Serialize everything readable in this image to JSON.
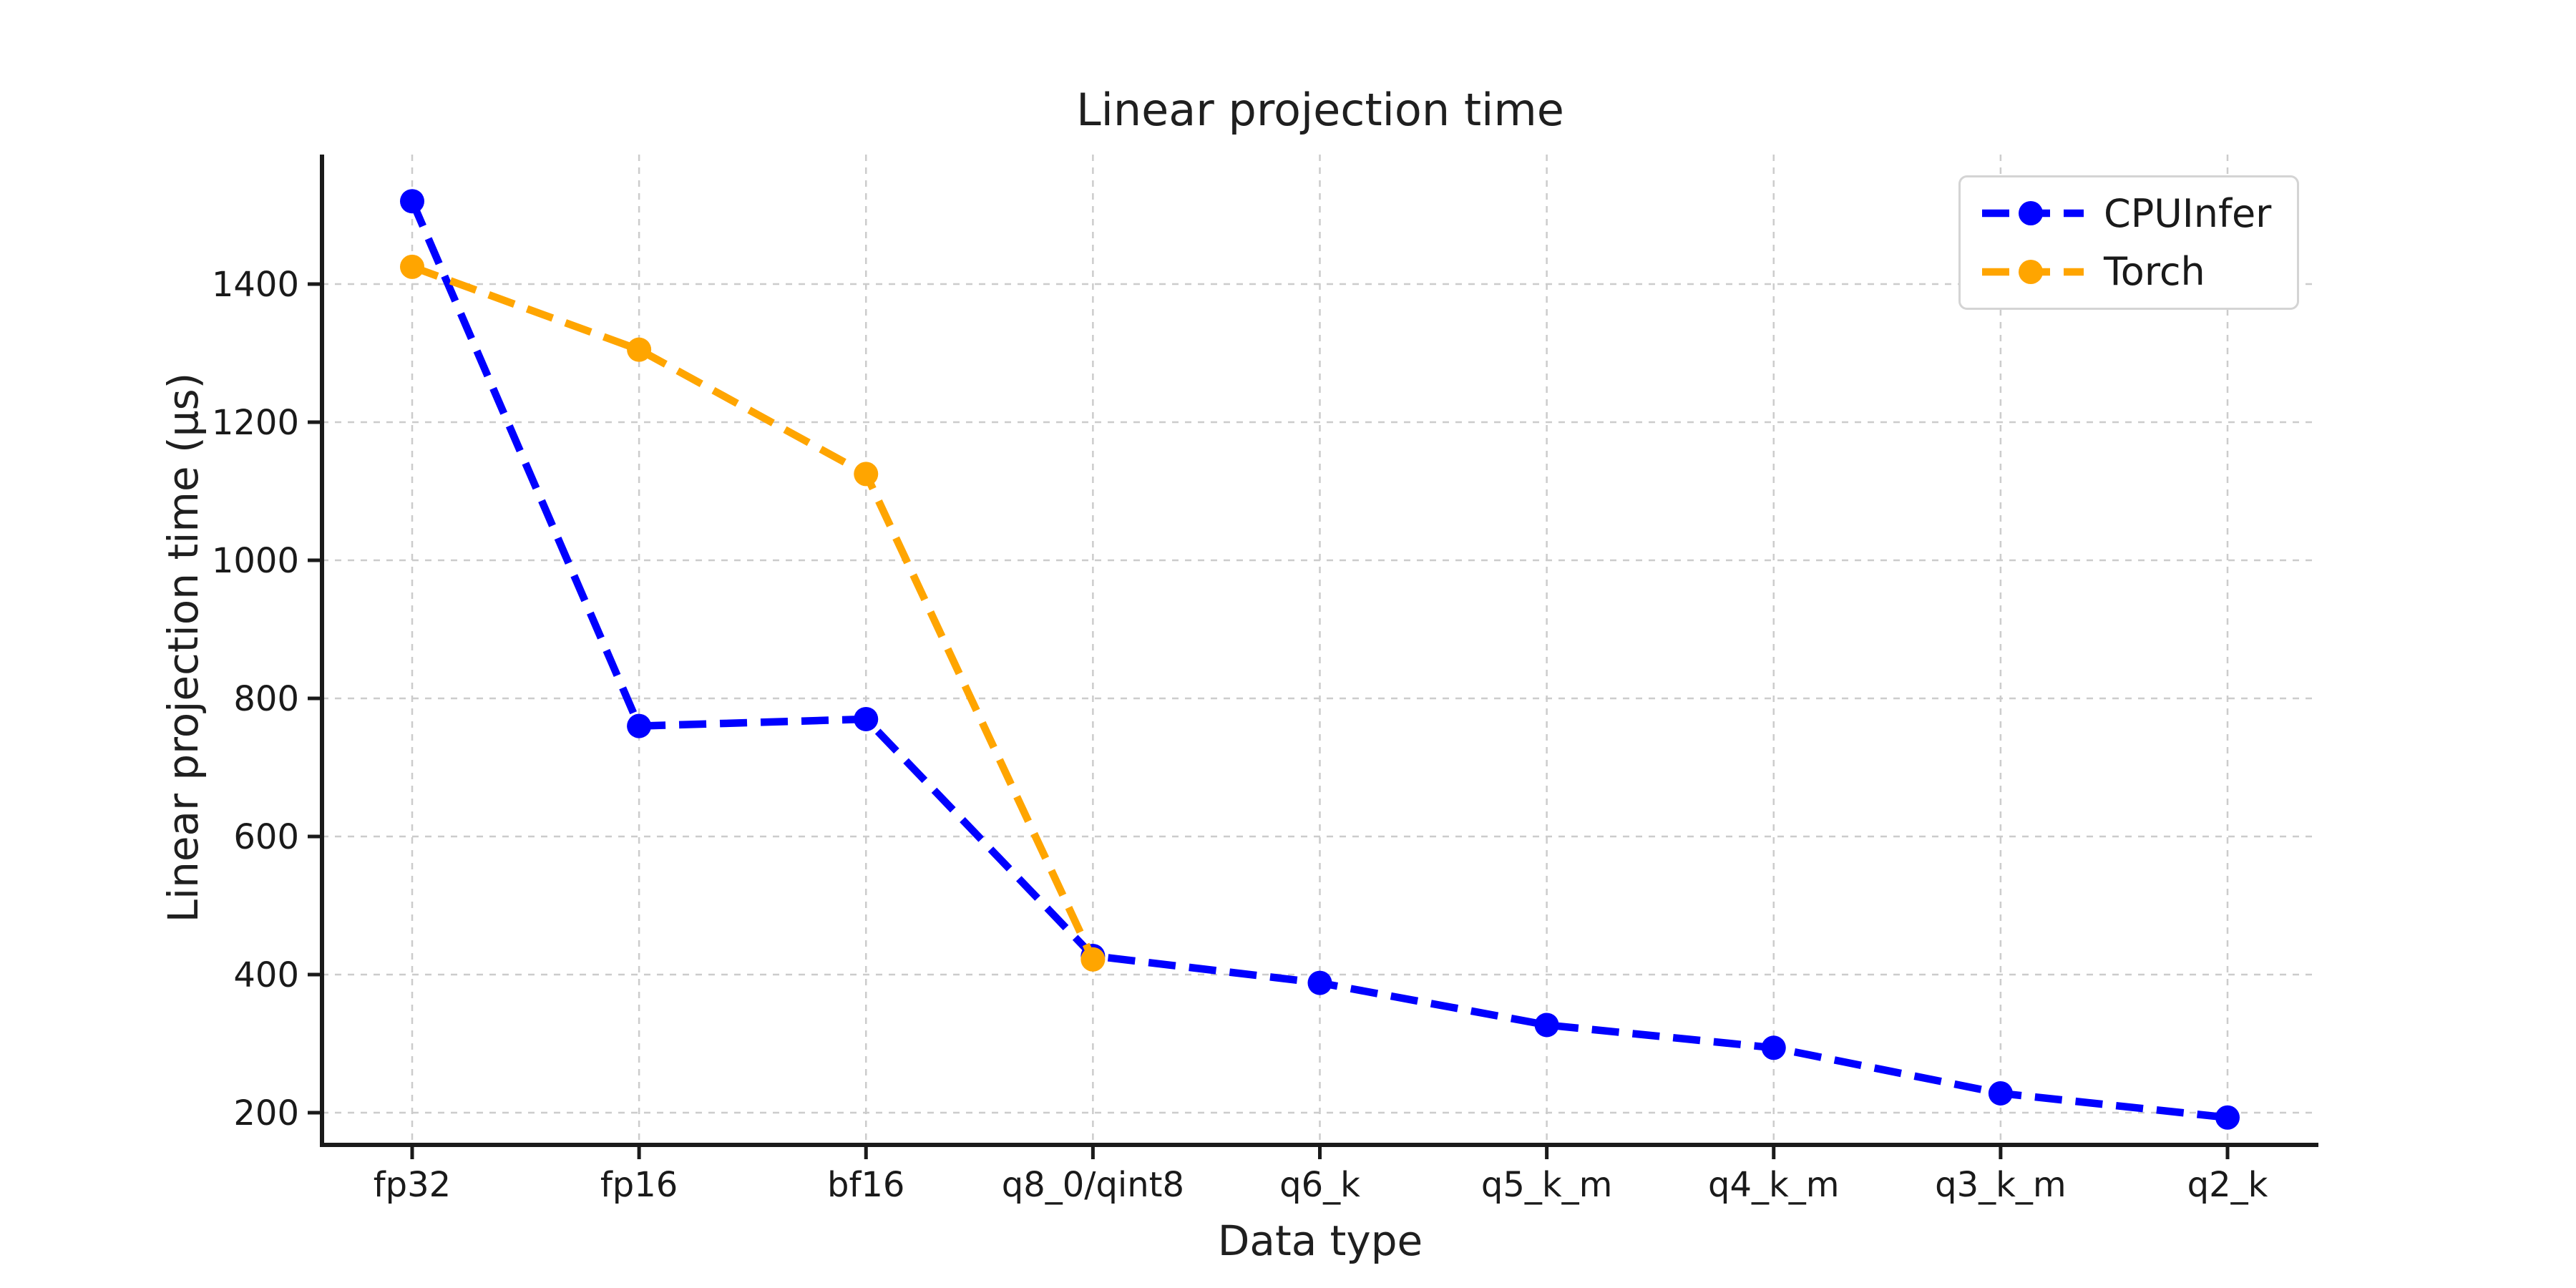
{
  "chart_data": {
    "type": "line",
    "title": "Linear projection time",
    "xlabel": "Data type",
    "ylabel": "Linear projection time (μs)",
    "categories": [
      "fp32",
      "fp16",
      "bf16",
      "q8_0/qint8",
      "q6_k",
      "q5_k_m",
      "q4_k_m",
      "q3_k_m",
      "q2_k"
    ],
    "series": [
      {
        "name": "CPUInfer",
        "color": "#0000ff",
        "values": [
          1520,
          760,
          770,
          427,
          388,
          327,
          294,
          228,
          193
        ]
      },
      {
        "name": "Torch",
        "color": "#ffa500",
        "values": [
          1425,
          1305,
          1125,
          422,
          null,
          null,
          null,
          null,
          null
        ]
      }
    ],
    "y_ticks": [
      200,
      400,
      600,
      800,
      1000,
      1200,
      1400
    ],
    "ylim": [
      150,
      1588
    ],
    "grid": true,
    "grid_color": "#cccccc",
    "axis_color": "#1a1a1a",
    "text_color": "#1a1a1a",
    "line_style": "dashed",
    "marker": "circle",
    "legend_position": "upper right"
  }
}
